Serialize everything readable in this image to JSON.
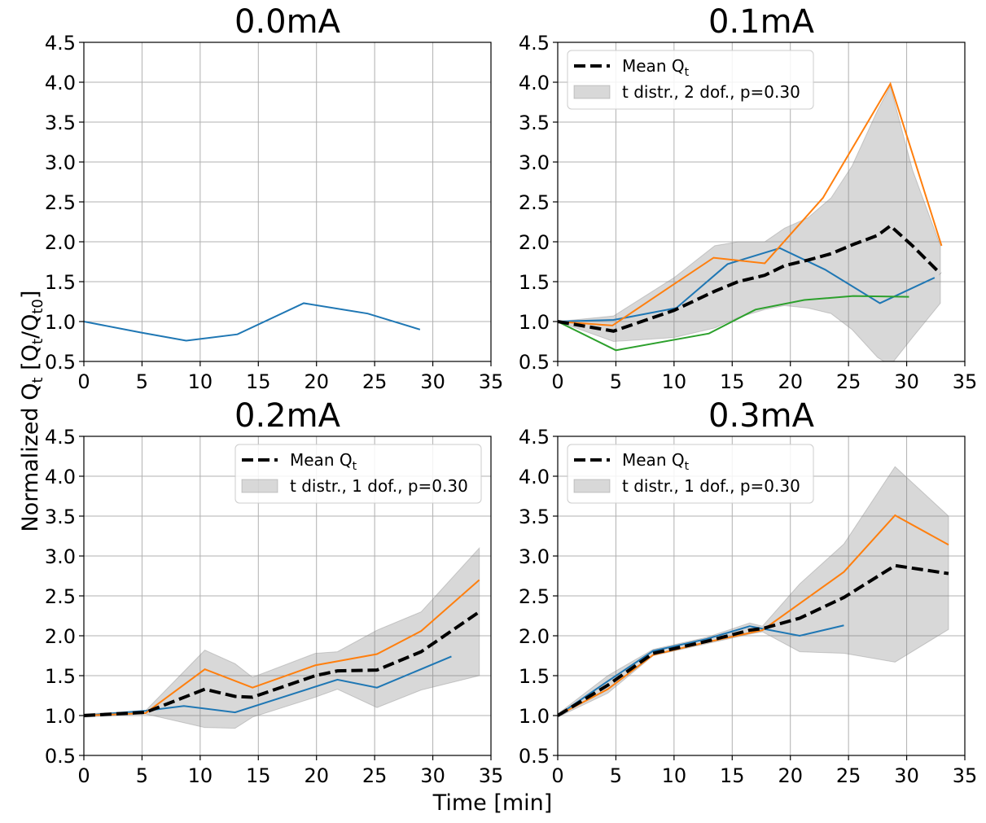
{
  "figure": {
    "xlabel": "Time [min]",
    "ylabel_main": "Normalized Q",
    "ylabel_sub_t": "t",
    "ylabel_bracket": " [Q",
    "ylabel_sub_t2": "t",
    "ylabel_slash": "/Q",
    "ylabel_sub_t0": "t0",
    "ylabel_close": "]"
  },
  "chart_data": [
    {
      "type": "line",
      "title": "0.0mA",
      "xlim": [
        0,
        35
      ],
      "ylim": [
        0.5,
        4.5
      ],
      "xticks": [
        0,
        5,
        10,
        15,
        20,
        25,
        30,
        35
      ],
      "yticks": [
        0.5,
        1.0,
        1.5,
        2.0,
        2.5,
        3.0,
        3.5,
        4.0,
        4.5
      ],
      "grid": true,
      "legend": null,
      "series": [
        {
          "color": "#1f77b4",
          "x": [
            0,
            5,
            8.8,
            13.2,
            18.9,
            24.4,
            28.9
          ],
          "y": [
            1.0,
            0.86,
            0.76,
            0.84,
            1.23,
            1.1,
            0.9
          ]
        }
      ]
    },
    {
      "type": "line",
      "title": "0.1mA",
      "xlim": [
        0,
        35
      ],
      "ylim": [
        0.5,
        4.5
      ],
      "xticks": [
        0,
        5,
        10,
        15,
        20,
        25,
        30,
        35
      ],
      "yticks": [
        0.5,
        1.0,
        1.5,
        2.0,
        2.5,
        3.0,
        3.5,
        4.0,
        4.5
      ],
      "grid": true,
      "legend": {
        "position": "upper-left",
        "mean_label": "Mean Q",
        "mean_sub": "t",
        "band_label": "t distr., 2 dof., p=0.30"
      },
      "band": {
        "x": [
          0,
          4.8,
          10,
          13.5,
          15.5,
          17.8,
          19.5,
          21.5,
          23.5,
          25.3,
          27.5,
          28.6,
          30.5,
          32.9
        ],
        "upper": [
          1.0,
          1.07,
          1.55,
          1.95,
          2.0,
          2.0,
          2.17,
          2.3,
          2.55,
          2.95,
          3.65,
          3.95,
          2.9,
          1.95
        ],
        "lower": [
          1.0,
          0.75,
          0.8,
          0.92,
          1.05,
          1.15,
          1.2,
          1.17,
          1.1,
          0.9,
          0.55,
          0.45,
          0.8,
          1.23
        ]
      },
      "mean": {
        "color": "#000000",
        "x": [
          0,
          4.8,
          10,
          13.5,
          15.5,
          17.8,
          19.5,
          21.5,
          23.5,
          25.3,
          27.5,
          28.6,
          30.5,
          32.9
        ],
        "y": [
          1.0,
          0.88,
          1.14,
          1.38,
          1.5,
          1.58,
          1.7,
          1.77,
          1.85,
          1.96,
          2.08,
          2.2,
          1.95,
          1.6
        ]
      },
      "series": [
        {
          "color": "#1f77b4",
          "x": [
            0,
            4.8,
            10.2,
            14.6,
            19.1,
            23.0,
            27.7,
            32.4
          ],
          "y": [
            1.0,
            1.02,
            1.17,
            1.72,
            1.92,
            1.65,
            1.23,
            1.55
          ]
        },
        {
          "color": "#ff7f0e",
          "x": [
            0,
            4.7,
            9.8,
            13.4,
            17.8,
            22.8,
            28.6,
            33.0
          ],
          "y": [
            1.0,
            0.95,
            1.45,
            1.8,
            1.73,
            2.55,
            3.98,
            1.95
          ]
        },
        {
          "color": "#2ca02c",
          "x": [
            0,
            5.0,
            13.0,
            17.0,
            21.2,
            25.4,
            30.2
          ],
          "y": [
            1.0,
            0.64,
            0.85,
            1.15,
            1.27,
            1.32,
            1.31
          ]
        }
      ]
    },
    {
      "type": "line",
      "title": "0.2mA",
      "xlim": [
        0,
        35
      ],
      "ylim": [
        0.5,
        4.5
      ],
      "xticks": [
        0,
        5,
        10,
        15,
        20,
        25,
        30,
        35
      ],
      "yticks": [
        0.5,
        1.0,
        1.5,
        2.0,
        2.5,
        3.0,
        3.5,
        4.0,
        4.5
      ],
      "grid": true,
      "legend": {
        "position": "upper-right",
        "mean_label": "Mean Q",
        "mean_sub": "t",
        "band_label": "t distr., 1 dof., p=0.30"
      },
      "band": {
        "x": [
          0,
          5.3,
          10.4,
          13.0,
          14.5,
          19.9,
          21.8,
          25.2,
          29.0,
          34.0
        ],
        "upper": [
          1.02,
          1.06,
          1.82,
          1.65,
          1.48,
          1.78,
          1.8,
          2.07,
          2.3,
          3.1
        ],
        "lower": [
          0.98,
          1.02,
          0.85,
          0.84,
          0.98,
          1.23,
          1.33,
          1.1,
          1.32,
          1.5
        ]
      },
      "mean": {
        "color": "#000000",
        "x": [
          0,
          5.3,
          10.4,
          13.0,
          14.5,
          19.9,
          21.8,
          25.2,
          29.0,
          34.0
        ],
        "y": [
          1.0,
          1.04,
          1.33,
          1.24,
          1.23,
          1.5,
          1.56,
          1.57,
          1.8,
          2.3
        ]
      },
      "series": [
        {
          "color": "#1f77b4",
          "x": [
            0,
            5.3,
            8.6,
            13.0,
            21.8,
            25.2,
            31.6
          ],
          "y": [
            1.0,
            1.06,
            1.12,
            1.04,
            1.45,
            1.35,
            1.74
          ]
        },
        {
          "color": "#ff7f0e",
          "x": [
            0,
            5.3,
            10.4,
            14.5,
            19.9,
            25.2,
            29.0,
            34.0
          ],
          "y": [
            1.0,
            1.03,
            1.58,
            1.35,
            1.63,
            1.77,
            2.06,
            2.7
          ]
        }
      ]
    },
    {
      "type": "line",
      "title": "0.3mA",
      "xlim": [
        0,
        35
      ],
      "ylim": [
        0.5,
        4.5
      ],
      "xticks": [
        0,
        5,
        10,
        15,
        20,
        25,
        30,
        35
      ],
      "yticks": [
        0.5,
        1.0,
        1.5,
        2.0,
        2.5,
        3.0,
        3.5,
        4.0,
        4.5
      ],
      "grid": true,
      "legend": {
        "position": "upper-left",
        "mean_label": "Mean Q",
        "mean_sub": "t",
        "band_label": "t distr., 1 dof., p=0.30"
      },
      "band": {
        "x": [
          0,
          4.3,
          8.2,
          12.8,
          16.5,
          17.6,
          20.8,
          24.6,
          29.0,
          33.6
        ],
        "upper": [
          1.02,
          1.5,
          1.83,
          1.98,
          2.16,
          2.12,
          2.65,
          3.15,
          4.12,
          3.5
        ],
        "lower": [
          0.98,
          1.28,
          1.75,
          1.9,
          2.02,
          2.05,
          1.8,
          1.78,
          1.67,
          2.08
        ]
      },
      "mean": {
        "color": "#000000",
        "x": [
          0,
          4.3,
          8.2,
          12.8,
          16.5,
          17.6,
          20.8,
          24.6,
          29.0,
          33.6
        ],
        "y": [
          1.0,
          1.38,
          1.78,
          1.93,
          2.07,
          2.09,
          2.22,
          2.48,
          2.88,
          2.78
        ]
      },
      "series": [
        {
          "color": "#1f77b4",
          "x": [
            0,
            4.3,
            8.2,
            12.8,
            16.5,
            20.8,
            24.6
          ],
          "y": [
            1.0,
            1.43,
            1.81,
            1.96,
            2.12,
            2.0,
            2.13
          ]
        },
        {
          "color": "#ff7f0e",
          "x": [
            0,
            4.3,
            8.2,
            12.8,
            17.6,
            24.6,
            29.0,
            33.6
          ],
          "y": [
            1.0,
            1.33,
            1.76,
            1.92,
            2.07,
            2.8,
            3.51,
            3.14
          ]
        }
      ]
    }
  ]
}
